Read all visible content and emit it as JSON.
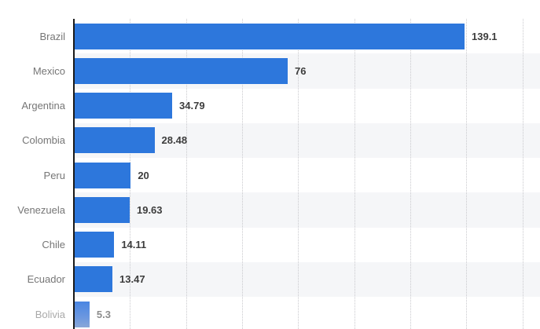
{
  "chart_data": {
    "type": "bar",
    "orientation": "horizontal",
    "title": "",
    "xlabel": "",
    "ylabel": "",
    "legend": "none",
    "grid": "vertical-dotted-gridlines",
    "categories": [
      "Brazil",
      "Mexico",
      "Argentina",
      "Colombia",
      "Peru",
      "Venezuela",
      "Chile",
      "Ecuador",
      "Bolivia"
    ],
    "values": [
      139.1,
      76,
      34.79,
      28.48,
      20,
      19.63,
      14.11,
      13.47,
      5.3
    ],
    "value_labels": [
      "139.1",
      "76",
      "34.79",
      "28.48",
      "20",
      "19.63",
      "14.11",
      "13.47",
      "5.3"
    ],
    "xlim": [
      0,
      166.3
    ],
    "gridline_step": 20,
    "highlight_index": 8,
    "colors": {
      "bar": "#2d77dc",
      "highlight_bar_top": "#4a86e2",
      "highlight_bar_bottom": "#8aa7d8",
      "category_label": "#767676",
      "dim_category_label": "#a9a9a9",
      "value_label": "#3d3d3d",
      "dim_value_label": "#8d8d8d",
      "axis": "#1a1a1a",
      "gridline": "#c9c9cd",
      "background": "#ffffff"
    }
  }
}
